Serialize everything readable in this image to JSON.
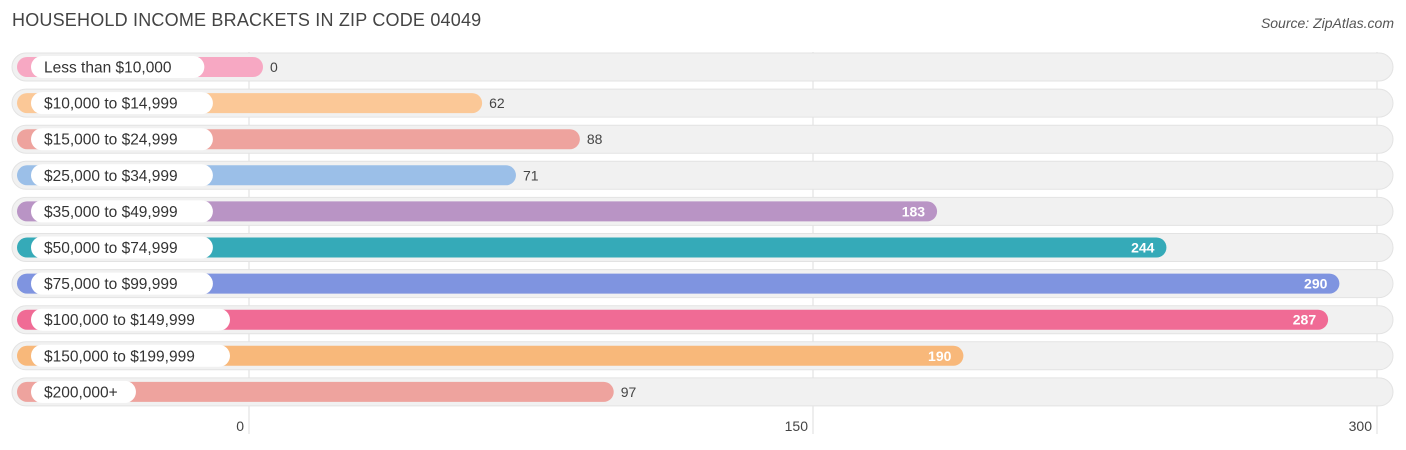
{
  "header": {
    "title": "HOUSEHOLD INCOME BRACKETS IN ZIP CODE 04049",
    "source": "Source: ZipAtlas.com"
  },
  "chart_data": {
    "type": "bar",
    "orientation": "horizontal",
    "title": "HOUSEHOLD INCOME BRACKETS IN ZIP CODE 04049",
    "categories": [
      "Less than $10,000",
      "$10,000 to $14,999",
      "$15,000 to $24,999",
      "$25,000 to $34,999",
      "$35,000 to $49,999",
      "$50,000 to $74,999",
      "$75,000 to $99,999",
      "$100,000 to $149,999",
      "$150,000 to $199,999",
      "$200,000+"
    ],
    "values": [
      0,
      62,
      88,
      71,
      183,
      244,
      290,
      287,
      190,
      97
    ],
    "colors": [
      "#f7a8c3",
      "#fbc897",
      "#eea39e",
      "#9bbfe8",
      "#b994c5",
      "#35aab8",
      "#7f94e0",
      "#f06b95",
      "#f8b87a",
      "#eea39e"
    ],
    "xlim": [
      0,
      300
    ],
    "xticks": [
      0,
      150,
      300
    ],
    "grid": true,
    "xlabel": "",
    "ylabel": ""
  }
}
